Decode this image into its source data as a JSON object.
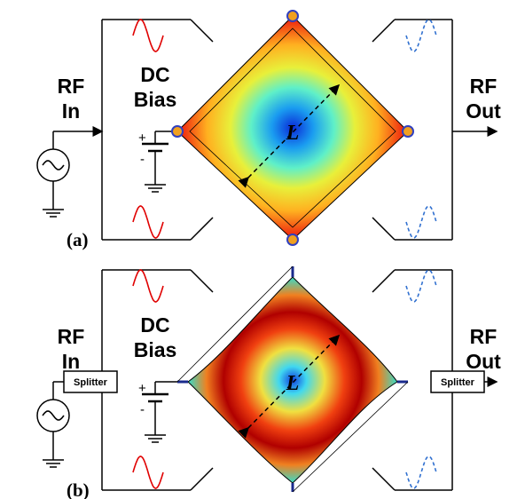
{
  "panels": [
    {
      "label": "(a)",
      "rf_in": [
        "RF",
        "In"
      ],
      "dc_bias": [
        "DC",
        "Bias"
      ],
      "rf_out": [
        "RF",
        "Out"
      ],
      "plus": "+",
      "minus": "-",
      "length": "L"
    },
    {
      "label": "(b)",
      "rf_in": [
        "RF",
        "In"
      ],
      "dc_bias": [
        "DC",
        "Bias"
      ],
      "rf_out": [
        "RF",
        "Out"
      ],
      "plus": "+",
      "minus": "-",
      "length": "L",
      "splitters": [
        "Splitter",
        "Splitter"
      ]
    }
  ]
}
